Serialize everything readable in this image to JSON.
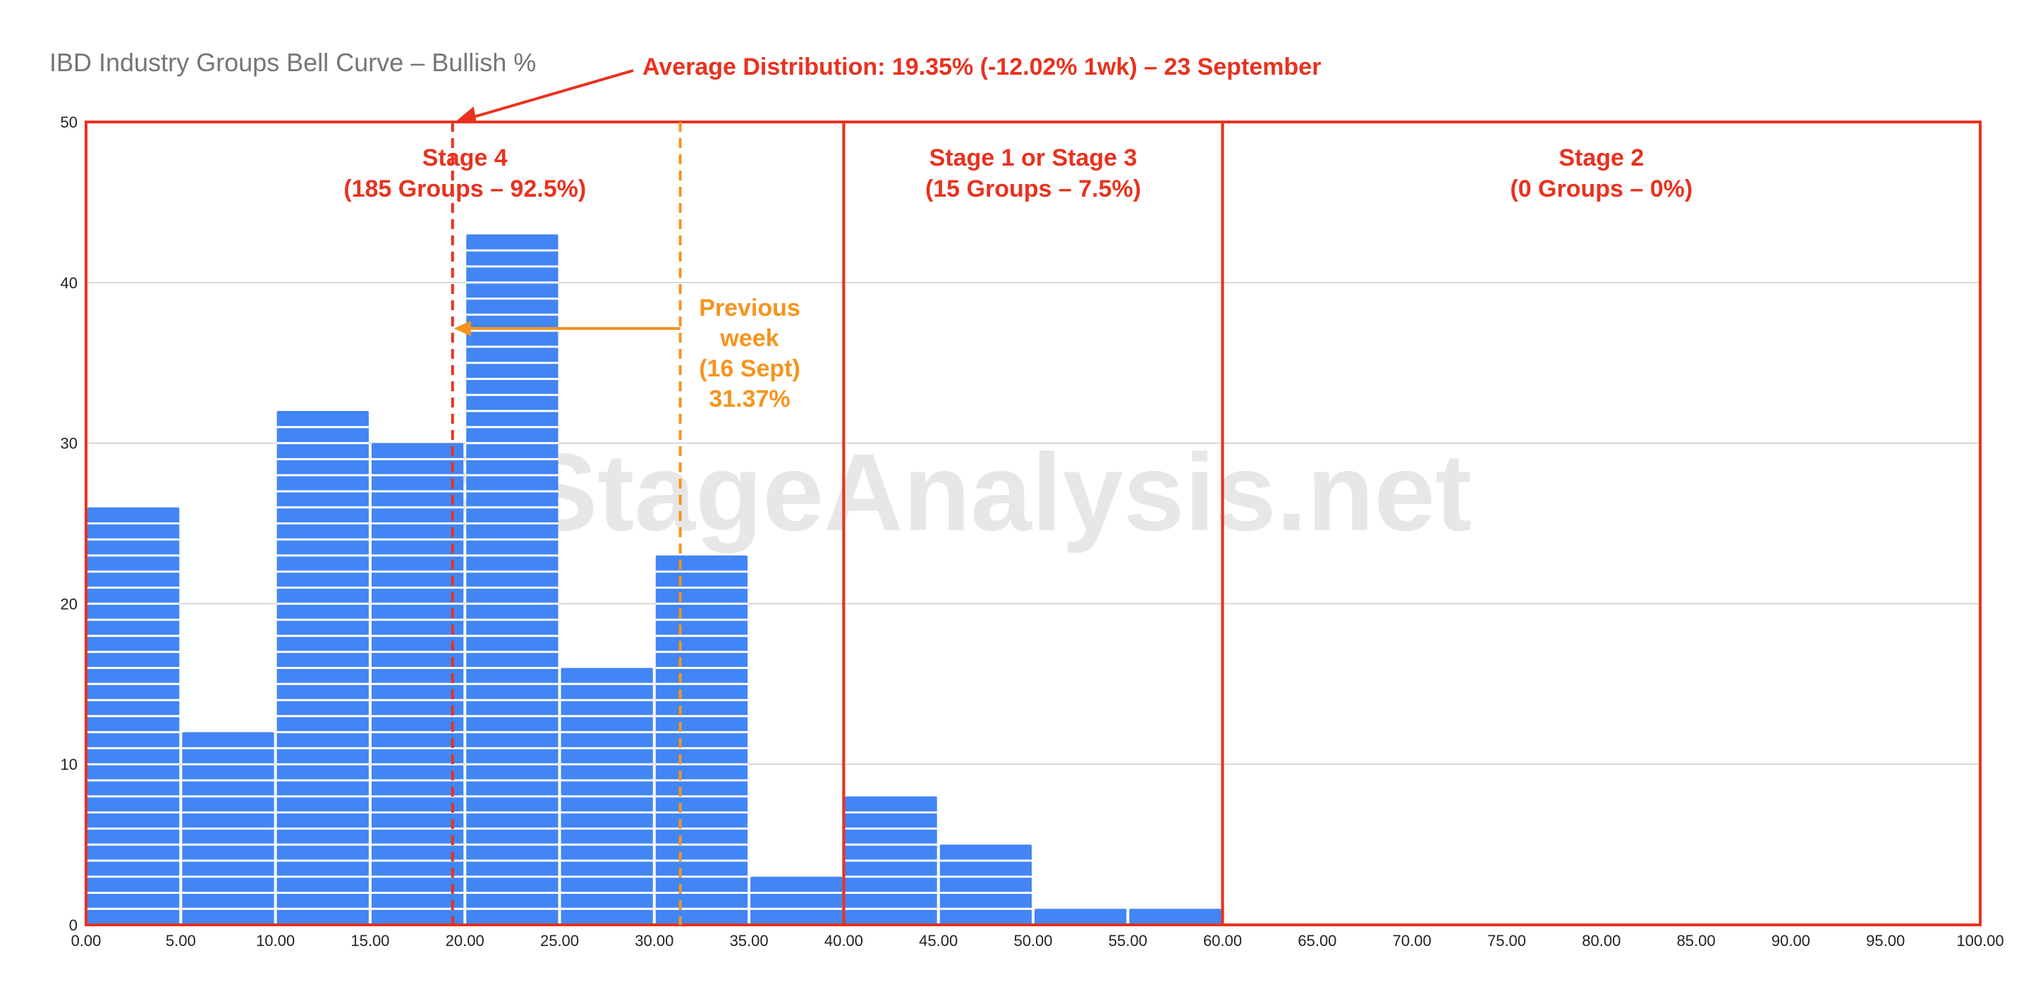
{
  "chart_data": {
    "type": "bar",
    "title": "IBD Industry Groups Bell Curve – Bullish %",
    "x_ticks": [
      "0.00",
      "5.00",
      "10.00",
      "15.00",
      "20.00",
      "25.00",
      "30.00",
      "35.00",
      "40.00",
      "45.00",
      "50.00",
      "55.00",
      "60.00",
      "65.00",
      "70.00",
      "75.00",
      "80.00",
      "85.00",
      "90.00",
      "95.00",
      "100.00"
    ],
    "y_ticks": [
      "0",
      "10",
      "20",
      "30",
      "40",
      "50"
    ],
    "xlim": [
      0,
      100
    ],
    "ylim": [
      0,
      50
    ],
    "bins": [
      {
        "start": 0,
        "end": 5,
        "value": 26
      },
      {
        "start": 5,
        "end": 10,
        "value": 12
      },
      {
        "start": 10,
        "end": 15,
        "value": 32
      },
      {
        "start": 15,
        "end": 20,
        "value": 30
      },
      {
        "start": 20,
        "end": 25,
        "value": 43
      },
      {
        "start": 25,
        "end": 30,
        "value": 16
      },
      {
        "start": 30,
        "end": 35,
        "value": 23
      },
      {
        "start": 35,
        "end": 40,
        "value": 3
      },
      {
        "start": 40,
        "end": 45,
        "value": 8
      },
      {
        "start": 45,
        "end": 50,
        "value": 5
      },
      {
        "start": 50,
        "end": 55,
        "value": 1
      },
      {
        "start": 55,
        "end": 60,
        "value": 1
      },
      {
        "start": 60,
        "end": 65,
        "value": 0
      },
      {
        "start": 65,
        "end": 70,
        "value": 0
      },
      {
        "start": 70,
        "end": 75,
        "value": 0
      },
      {
        "start": 75,
        "end": 80,
        "value": 0
      },
      {
        "start": 80,
        "end": 85,
        "value": 0
      },
      {
        "start": 85,
        "end": 90,
        "value": 0
      },
      {
        "start": 90,
        "end": 95,
        "value": 0
      },
      {
        "start": 95,
        "end": 100,
        "value": 0
      }
    ],
    "grid": true,
    "legend": "none",
    "average_distribution": {
      "label": "Average Distribution: 19.35% (-12.02% 1wk) – 23 September",
      "value": 19.35,
      "change_1wk": -12.02
    },
    "previous_week": {
      "lines": [
        "Previous",
        "week",
        "(16 Sept)",
        "31.37%"
      ],
      "value": 31.37
    },
    "stages": [
      {
        "from": 0,
        "to": 40,
        "name": "Stage 4",
        "detail": "(185 Groups – 92.5%)"
      },
      {
        "from": 40,
        "to": 60,
        "name": "Stage 1 or Stage 3",
        "detail": "(15 Groups – 7.5%)"
      },
      {
        "from": 60,
        "to": 100,
        "name": "Stage 2",
        "detail": "(0 Groups – 0%)"
      }
    ],
    "watermark": "© StageAnalysis.net"
  },
  "colors": {
    "bar": "#4285f4",
    "bar_stripe": "#ffffff",
    "stage_box": "#e8321f",
    "average_line": "#e8321f",
    "previous_line": "#f5941d",
    "grid": "#cccccc",
    "title": "#757575",
    "watermark": "#e0e0e0"
  }
}
